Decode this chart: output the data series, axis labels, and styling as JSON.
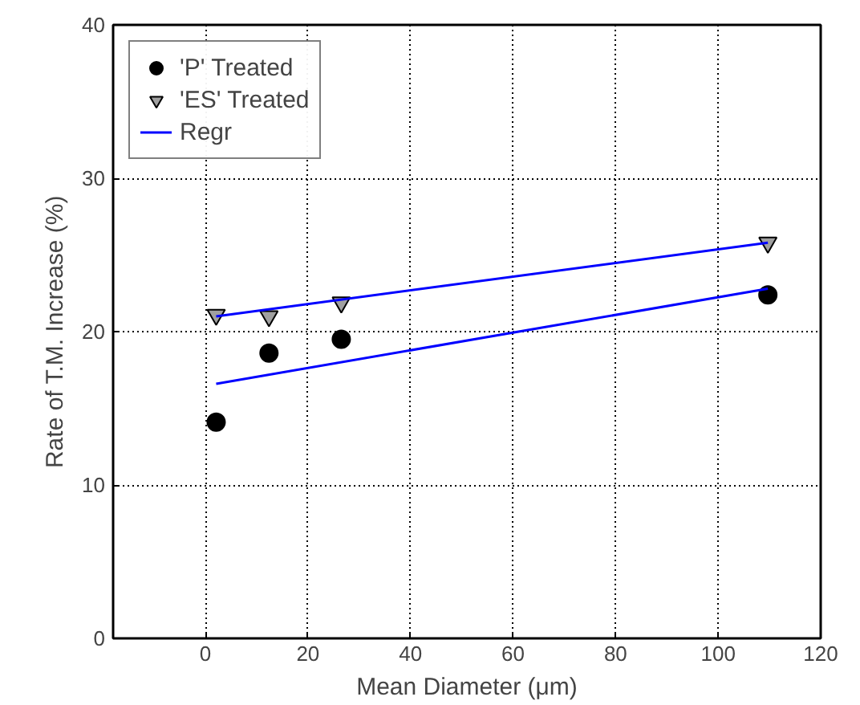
{
  "chart_data": {
    "type": "scatter",
    "xlabel": "Mean Diameter (μm)",
    "ylabel": "Rate of T.M. Increase (%)",
    "xlim": [
      -18,
      120
    ],
    "xticks": [
      0,
      20,
      40,
      60,
      80,
      100,
      120
    ],
    "ylim": [
      0,
      40
    ],
    "yticks": [
      0,
      10,
      20,
      30,
      40
    ],
    "grid": true,
    "legend": "top left",
    "series": [
      {
        "name": "'P' Treated",
        "marker": "circle",
        "color": "#000000",
        "x": [
          2.1,
          12.4,
          26.5,
          109.7
        ],
        "values": [
          14.1,
          18.6,
          19.5,
          22.4
        ]
      },
      {
        "name": "'ES' Treated",
        "marker": "triangle",
        "color": "#a0a0a0",
        "x": [
          2.1,
          12.4,
          26.5,
          109.7
        ],
        "values": [
          21.1,
          21.0,
          21.9,
          25.8
        ]
      },
      {
        "name": "Regr",
        "type": "line",
        "color": "#0000ff",
        "x": [
          2.1,
          109.7
        ],
        "values": [
          21.0,
          25.8
        ]
      },
      {
        "type": "line",
        "color": "#0000ff",
        "x": [
          2.1,
          109.7
        ],
        "values": [
          16.6,
          22.8
        ]
      }
    ]
  }
}
